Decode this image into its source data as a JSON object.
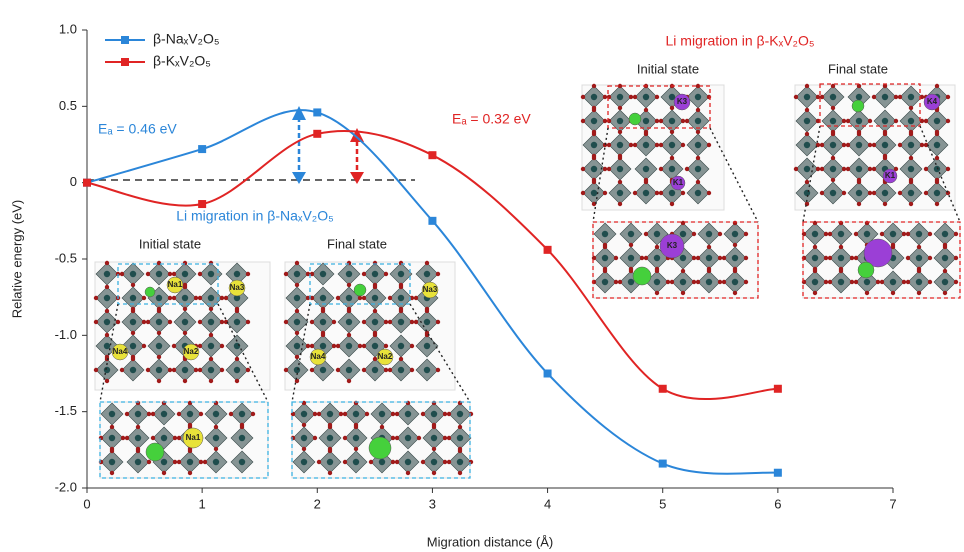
{
  "chart_data": {
    "type": "line",
    "x_label": "Migration distance (Å)",
    "y_label": "Relative energy (eV)",
    "x": [
      0,
      1,
      2,
      3,
      4,
      5,
      6
    ],
    "series": [
      {
        "name": "β-NaₓV₂O₅",
        "color": "#2b86d9",
        "values": [
          0,
          0.22,
          0.46,
          -0.25,
          -1.25,
          -1.84,
          -1.9
        ]
      },
      {
        "name": "β-KₓV₂O₅",
        "color": "#e02424",
        "values": [
          0,
          -0.14,
          0.32,
          0.18,
          -0.44,
          -1.35,
          -1.35
        ]
      }
    ],
    "xlim": [
      0,
      7
    ],
    "xticks": [
      0,
      1,
      2,
      3,
      4,
      5,
      6,
      7
    ],
    "ylim": [
      -2,
      1
    ],
    "yticks": [
      {
        "value": -2,
        "label": "-2.0"
      },
      -1.5,
      {
        "value": -1,
        "label": "-1.0"
      },
      -0.5,
      0,
      0.5,
      {
        "value": 1,
        "label": "1.0"
      }
    ],
    "legend": "upper left",
    "annotations": [
      "Eₐ = 0.46 eV",
      "Eₐ = 0.32 eV"
    ],
    "insets": [
      {
        "title": "Li migration in β-NaₓV₂O₅",
        "initial": "Initial state",
        "final": "Final state",
        "initial_sites": [
          "Na1",
          "Na3",
          "Na4",
          "Na2"
        ],
        "final_sites": [
          "Na3",
          "Na4",
          "Na2"
        ],
        "zoom_site": "Na1"
      },
      {
        "title": "Li migration in β-KₓV₂O₅",
        "initial": "Initial state",
        "final": "Final state",
        "initial_sites": [
          "K3",
          "K1"
        ],
        "final_sites": [
          "K4",
          "K1"
        ],
        "zoom_site": "K3"
      }
    ]
  }
}
